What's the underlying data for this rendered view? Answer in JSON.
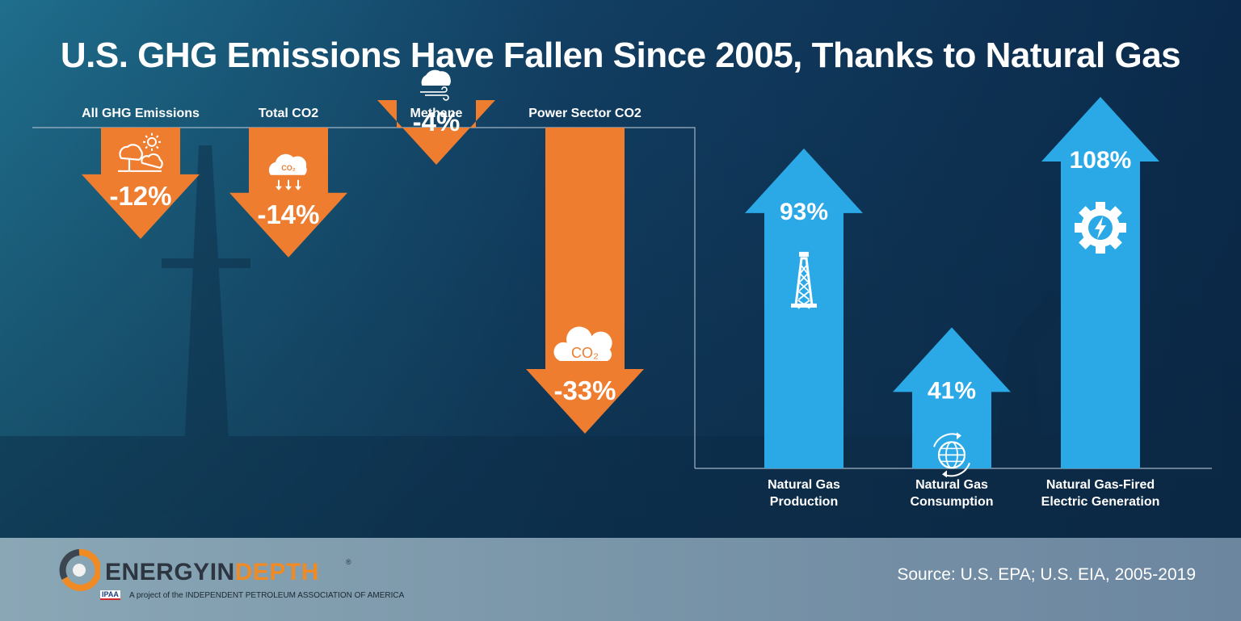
{
  "title": "U.S. GHG Emissions Have Fallen Since 2005, Thanks to Natural Gas",
  "source": "Source: U.S. EPA; U.S. EIA, 2005-2019",
  "brand": {
    "name_part1": "ENERGYIN",
    "name_part2": "DEPTH",
    "registered": "®",
    "badge": "IPAA",
    "tagline": "A project of the INDEPENDENT PETROLEUM ASSOCIATION OF AMERICA"
  },
  "colors": {
    "decrease_arrow": "#ee7d30",
    "increase_arrow": "#2aa9e6",
    "background_dark": "#0d2f4f",
    "background_teal": "#1d6b8a"
  },
  "chart_data": [
    {
      "type": "bar",
      "direction": "down",
      "categories": [
        "All GHG Emissions",
        "Total CO2",
        "Methane",
        "Power Sector CO2"
      ],
      "values": [
        -12,
        -14,
        -4,
        -33
      ],
      "value_labels": [
        "-12%",
        "-14%",
        "-4%",
        "-33%"
      ],
      "icons": [
        "tree-cloud-sun-icon",
        "co2-cloud-down-icon",
        "methane-cloud-wind-icon",
        "co2-cloud-icon"
      ],
      "icon_texts": [
        "",
        "CO₂",
        "",
        "CO₂"
      ],
      "ylim": [
        -33,
        0
      ]
    },
    {
      "type": "bar",
      "direction": "up",
      "categories": [
        "Natural Gas Production",
        "Natural Gas Consumption",
        "Natural Gas-Fired Electric Generation"
      ],
      "label_lines": [
        [
          "Natural Gas",
          "Production"
        ],
        [
          "Natural Gas",
          "Consumption"
        ],
        [
          "Natural Gas-Fired",
          "Electric Generation"
        ]
      ],
      "values": [
        93,
        41,
        108
      ],
      "value_labels": [
        "93%",
        "41%",
        "108%"
      ],
      "icons": [
        "oil-derrick-icon",
        "globe-cycle-icon",
        "gear-lightning-icon"
      ],
      "ylim": [
        0,
        108
      ]
    }
  ]
}
